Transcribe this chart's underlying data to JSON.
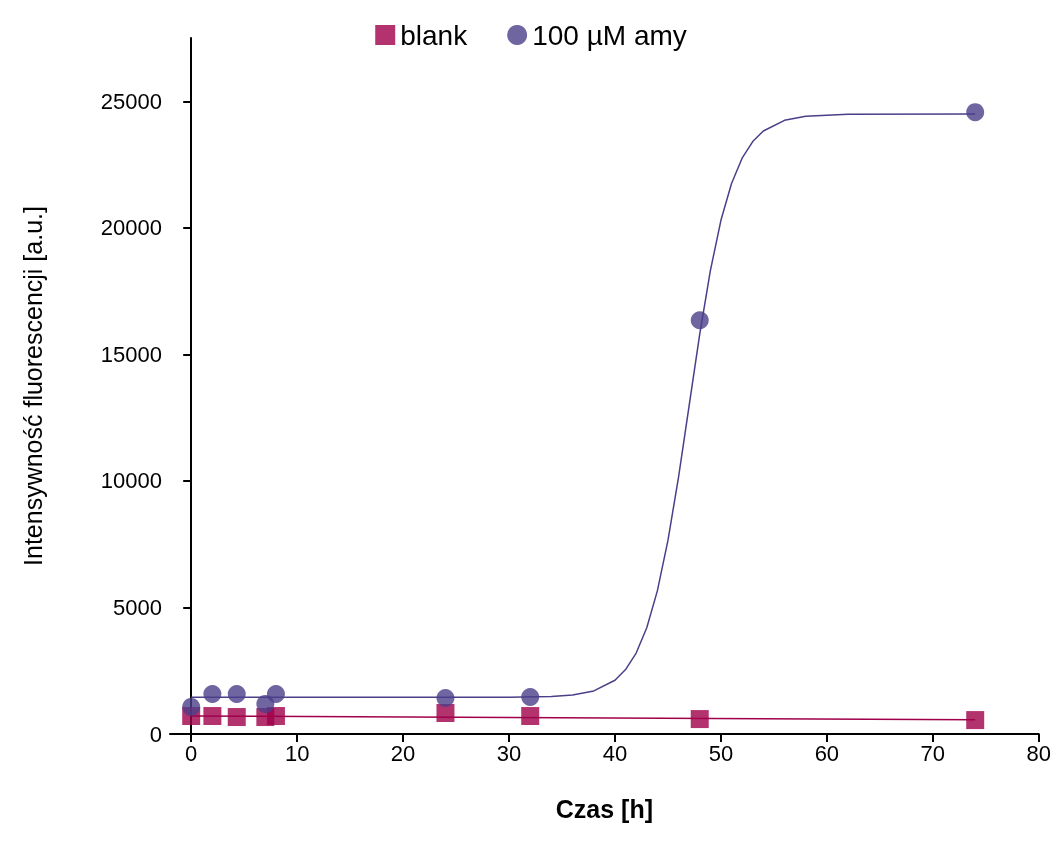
{
  "chart_data": {
    "type": "scatter",
    "xlabel": "Czas [h]",
    "ylabel": "Intensywność fluorescencji [a.u.]",
    "xlim": [
      -2,
      80
    ],
    "xticks": [
      0,
      10,
      20,
      30,
      40,
      50,
      60,
      70,
      80
    ],
    "ylim": [
      0,
      27500
    ],
    "yticks": [
      0,
      5000,
      10000,
      15000,
      20000,
      25000
    ],
    "grid": false,
    "legend": "top",
    "series": [
      {
        "name": "blank",
        "color": "#a0004a",
        "marker": "square",
        "x": [
          0,
          2,
          4.3,
          7,
          8,
          24,
          32,
          48,
          74
        ],
        "values": [
          710,
          710,
          670,
          670,
          710,
          830,
          710,
          590,
          550
        ]
      },
      {
        "name": "100 µM amy",
        "color": "#4b3f8a",
        "marker": "circle",
        "x": [
          0,
          2,
          4.3,
          7,
          8,
          24,
          32,
          48,
          74
        ],
        "values": [
          1070,
          1580,
          1580,
          1190,
          1580,
          1420,
          1460,
          16350,
          24570
        ]
      },
      {
        "type": "line",
        "color": "#a0004a",
        "marker": "none",
        "x": [
          0,
          74
        ],
        "values": [
          710,
          560
        ]
      },
      {
        "type": "line",
        "color": "#4b3f8a",
        "marker": "none",
        "x": [
          0,
          30,
          34,
          36,
          38,
          40,
          41,
          42,
          43,
          44,
          45,
          46,
          47,
          48,
          49,
          50,
          51,
          52,
          53,
          54,
          56,
          58,
          62,
          74
        ],
        "values": [
          1450,
          1455,
          1485,
          1544,
          1702,
          2123,
          2547,
          3199,
          4197,
          5656,
          7649,
          10151,
          12975,
          15798,
          18301,
          20296,
          21753,
          22751,
          23407,
          23824,
          24247,
          24406,
          24487,
          24500
        ]
      }
    ]
  }
}
